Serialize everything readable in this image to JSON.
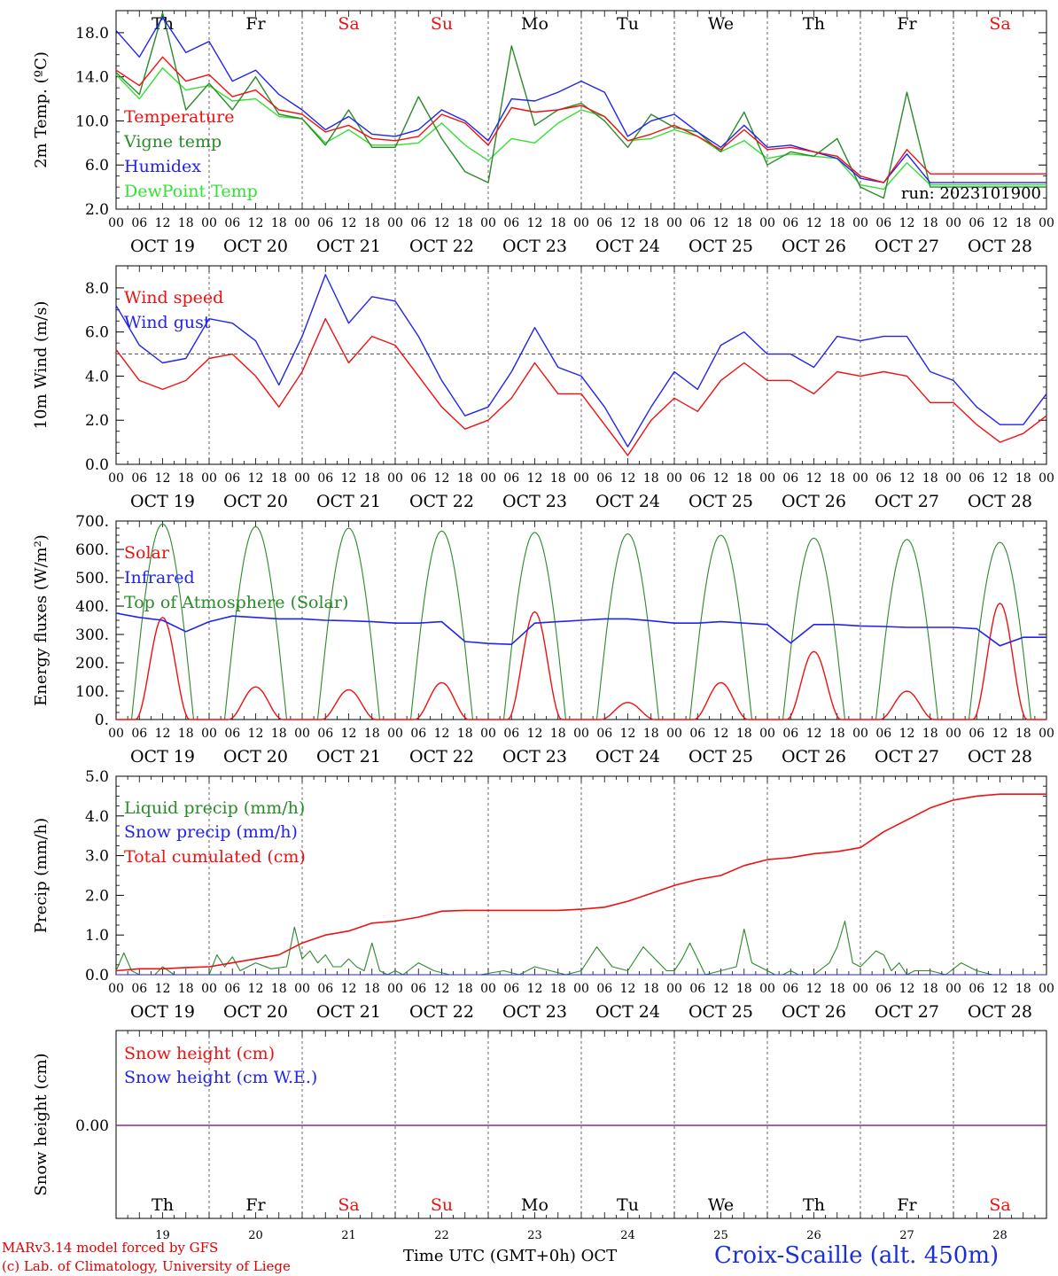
{
  "colors": {
    "red": "#ee1111",
    "green": "#2a8a2a",
    "blue": "#2222ee",
    "lightgreen": "#33e033",
    "purple": "#8a2a8a",
    "black": "#000000"
  },
  "days": [
    "Th",
    "Fr",
    "Sa",
    "Su",
    "Mo",
    "Tu",
    "We",
    "Th",
    "Fr",
    "Sa"
  ],
  "weekend_days": [
    2,
    3,
    9
  ],
  "date_labels": [
    "OCT 19",
    "OCT 20",
    "OCT 21",
    "OCT 22",
    "OCT 23",
    "OCT 24",
    "OCT 25",
    "OCT 26",
    "OCT 27",
    "OCT 28"
  ],
  "hour_ticks": [
    "00",
    "06",
    "12",
    "18"
  ],
  "hour_end": "00",
  "bottom_day_numbers": [
    "19",
    "20",
    "21",
    "22",
    "23",
    "24",
    "25",
    "26",
    "27",
    "28"
  ],
  "footer": {
    "credit_line1": "MARv3.14 model forced by GFS",
    "credit_line2": "(c) Lab. of Climatology, University of Liege",
    "xaxis_title": "Time UTC (GMT+0h) OCT",
    "station": "Croix-Scaille (alt. 450m)"
  },
  "chart_data": [
    {
      "type": "line",
      "ylabel": "2m Temp. (ºC)",
      "ylim": [
        2,
        20
      ],
      "yticks": [
        2,
        6,
        10,
        14,
        18
      ],
      "ytick_labels": [
        "2.0",
        "6.0",
        "10.0",
        "14.0",
        "18.0"
      ],
      "annotation": "run: 2023101900",
      "x_unit": "hours since Oct 19 00 UTC",
      "series": [
        {
          "name": "Temperature",
          "color": "red",
          "x": [
            0,
            6,
            12,
            18,
            24,
            30,
            36,
            42,
            48,
            54,
            60,
            66,
            72,
            78,
            84,
            90,
            96,
            102,
            108,
            114,
            120,
            126,
            132,
            138,
            144,
            150,
            156,
            162,
            168,
            174,
            180,
            186,
            192,
            198,
            204,
            210,
            216,
            222,
            228,
            234,
            240
          ],
          "y": [
            14.6,
            13.2,
            15.8,
            13.6,
            14.2,
            12.2,
            12.8,
            11.0,
            10.6,
            9.0,
            9.6,
            8.4,
            8.2,
            8.6,
            10.6,
            9.8,
            7.8,
            11.2,
            10.8,
            11.0,
            11.4,
            10.4,
            8.2,
            8.8,
            9.6,
            8.6,
            7.4,
            9.2,
            7.4,
            7.6,
            7.2,
            6.8,
            5.0,
            4.4,
            7.4,
            5.2,
            5.2,
            5.2,
            5.2,
            5.2,
            5.2
          ]
        },
        {
          "name": "Vigne temp",
          "color": "green",
          "x": [
            0,
            6,
            12,
            18,
            24,
            30,
            36,
            42,
            48,
            54,
            60,
            66,
            72,
            78,
            84,
            90,
            96,
            102,
            108,
            114,
            120,
            126,
            132,
            138,
            144,
            150,
            156,
            162,
            168,
            174,
            180,
            186,
            192,
            198,
            204,
            210,
            216,
            222,
            228,
            234,
            240
          ],
          "y": [
            14.4,
            12.4,
            19.8,
            11.0,
            13.4,
            11.0,
            14.0,
            10.6,
            10.2,
            7.8,
            11.0,
            7.6,
            7.6,
            12.2,
            8.4,
            5.4,
            4.4,
            16.8,
            9.6,
            11.0,
            11.6,
            10.0,
            7.6,
            10.6,
            9.4,
            9.0,
            7.2,
            10.8,
            6.0,
            7.2,
            6.8,
            8.4,
            4.0,
            3.0,
            12.6,
            4.0,
            4.0,
            4.0,
            4.0,
            4.0,
            4.0
          ]
        },
        {
          "name": "Humidex",
          "color": "blue",
          "x": [
            0,
            6,
            12,
            18,
            24,
            30,
            36,
            42,
            48,
            54,
            60,
            66,
            72,
            78,
            84,
            90,
            96,
            102,
            108,
            114,
            120,
            126,
            132,
            138,
            144,
            150,
            156,
            162,
            168,
            174,
            180,
            186,
            192,
            198,
            204,
            210,
            216,
            222,
            228,
            234,
            240
          ],
          "y": [
            18.2,
            15.8,
            19.4,
            16.2,
            17.2,
            13.6,
            14.6,
            12.4,
            11.0,
            9.2,
            10.4,
            8.8,
            8.6,
            9.2,
            11.0,
            10.0,
            8.2,
            12.0,
            11.8,
            12.6,
            13.6,
            12.6,
            8.6,
            10.0,
            10.6,
            9.0,
            7.6,
            9.6,
            7.6,
            7.8,
            7.2,
            6.6,
            4.8,
            4.4,
            7.0,
            4.4,
            4.4,
            4.4,
            4.4,
            4.4,
            4.4
          ]
        },
        {
          "name": "DewPoint Temp",
          "color": "lightgreen",
          "x": [
            0,
            6,
            12,
            18,
            24,
            30,
            36,
            42,
            48,
            54,
            60,
            66,
            72,
            78,
            84,
            90,
            96,
            102,
            108,
            114,
            120,
            126,
            132,
            138,
            144,
            150,
            156,
            162,
            168,
            174,
            180,
            186,
            192,
            198,
            204,
            210,
            216,
            222,
            228,
            234,
            240
          ],
          "y": [
            14.2,
            12.0,
            14.8,
            12.8,
            13.2,
            11.8,
            12.0,
            10.4,
            10.2,
            8.0,
            9.2,
            7.8,
            7.8,
            8.0,
            9.8,
            7.8,
            6.4,
            8.4,
            8.0,
            9.8,
            11.0,
            10.4,
            8.2,
            8.4,
            9.2,
            8.6,
            7.2,
            8.2,
            6.6,
            7.0,
            6.8,
            6.6,
            4.2,
            3.8,
            6.2,
            4.2,
            4.2,
            4.2,
            4.2,
            4.2,
            4.2
          ]
        }
      ]
    },
    {
      "type": "line",
      "ylabel": "10m Wind (m/s)",
      "ylim": [
        0,
        9
      ],
      "yticks": [
        0,
        2,
        4,
        6,
        8
      ],
      "ytick_labels": [
        "0.0",
        "2.0",
        "4.0",
        "6.0",
        "8.0"
      ],
      "reference_line": 5,
      "series": [
        {
          "name": "Wind speed",
          "color": "red",
          "x": [
            0,
            6,
            12,
            18,
            24,
            30,
            36,
            42,
            48,
            54,
            60,
            66,
            72,
            78,
            84,
            90,
            96,
            102,
            108,
            114,
            120,
            126,
            132,
            138,
            144,
            150,
            156,
            162,
            168,
            174,
            180,
            186,
            192,
            198,
            204,
            210,
            216,
            222,
            228,
            234,
            240
          ],
          "y": [
            5.2,
            3.8,
            3.4,
            3.8,
            4.8,
            5.0,
            4.0,
            2.6,
            4.2,
            6.6,
            4.6,
            5.8,
            5.4,
            4.0,
            2.6,
            1.6,
            2.0,
            3.0,
            4.6,
            3.2,
            3.2,
            1.8,
            0.4,
            2.0,
            3.0,
            2.4,
            3.8,
            4.6,
            3.8,
            3.8,
            3.2,
            4.2,
            4.0,
            4.2,
            4.0,
            2.8,
            2.8,
            1.8,
            1.0,
            1.4,
            2.2
          ]
        },
        {
          "name": "Wind gust",
          "color": "blue",
          "x": [
            0,
            6,
            12,
            18,
            24,
            30,
            36,
            42,
            48,
            54,
            60,
            66,
            72,
            78,
            84,
            90,
            96,
            102,
            108,
            114,
            120,
            126,
            132,
            138,
            144,
            150,
            156,
            162,
            168,
            174,
            180,
            186,
            192,
            198,
            204,
            210,
            216,
            222,
            228,
            234,
            240
          ],
          "y": [
            7.2,
            5.4,
            4.6,
            4.8,
            6.6,
            6.4,
            5.6,
            3.6,
            5.8,
            8.6,
            6.4,
            7.6,
            7.4,
            5.8,
            3.8,
            2.2,
            2.6,
            4.2,
            6.2,
            4.4,
            4.0,
            2.6,
            0.8,
            2.6,
            4.2,
            3.4,
            5.4,
            6.0,
            5.0,
            5.0,
            4.4,
            5.8,
            5.6,
            5.8,
            5.8,
            4.2,
            3.8,
            2.6,
            1.8,
            1.8,
            3.2
          ]
        }
      ]
    },
    {
      "type": "line",
      "ylabel": "Energy fluxes (W/m²)",
      "ylim": [
        0,
        700
      ],
      "yticks": [
        0,
        100,
        200,
        300,
        400,
        500,
        600,
        700
      ],
      "ytick_labels": [
        "0.",
        "100.",
        "200.",
        "300.",
        "400.",
        "500.",
        "600.",
        "700."
      ],
      "series": [
        {
          "name": "Solar",
          "color": "red",
          "peak_hour": [
            12,
            36,
            60,
            84,
            108,
            132,
            156,
            180,
            204,
            228
          ],
          "peak_value": [
            360,
            115,
            105,
            130,
            380,
            60,
            130,
            240,
            100,
            410
          ]
        },
        {
          "name": "Infrared",
          "color": "blue",
          "x": [
            0,
            6,
            12,
            18,
            24,
            30,
            36,
            42,
            48,
            54,
            60,
            66,
            72,
            78,
            84,
            90,
            96,
            102,
            108,
            114,
            120,
            126,
            132,
            138,
            144,
            150,
            156,
            162,
            168,
            174,
            180,
            186,
            192,
            198,
            204,
            210,
            216,
            222,
            228,
            234,
            240
          ],
          "y": [
            375,
            360,
            350,
            310,
            345,
            365,
            360,
            355,
            355,
            350,
            348,
            345,
            340,
            340,
            345,
            275,
            268,
            265,
            340,
            345,
            350,
            355,
            355,
            348,
            340,
            340,
            345,
            340,
            335,
            270,
            335,
            335,
            330,
            328,
            325,
            325,
            325,
            320,
            260,
            290,
            290
          ]
        },
        {
          "name": "Top of Atmosphere (Solar)",
          "color": "green",
          "peak_hour": [
            12,
            36,
            60,
            84,
            108,
            132,
            156,
            180,
            204,
            228
          ],
          "peak_value": [
            690,
            680,
            675,
            665,
            660,
            655,
            650,
            640,
            635,
            625
          ]
        }
      ]
    },
    {
      "type": "line",
      "ylabel": "Precip (mm/h)",
      "ylim": [
        0,
        5
      ],
      "yticks": [
        0,
        1,
        2,
        3,
        4,
        5
      ],
      "ytick_labels": [
        "0.0",
        "1.0",
        "2.0",
        "3.0",
        "4.0",
        "5.0"
      ],
      "series": [
        {
          "name": "Liquid precip (mm/h)",
          "color": "green",
          "x": [
            0,
            2,
            4,
            6,
            10,
            12,
            15,
            18,
            21,
            24,
            26,
            28,
            30,
            32,
            36,
            40,
            44,
            46,
            48,
            50,
            52,
            54,
            56,
            58,
            60,
            62,
            64,
            66,
            68,
            70,
            72,
            74,
            78,
            82,
            86,
            90,
            94,
            100,
            104,
            108,
            112,
            116,
            120,
            124,
            128,
            132,
            136,
            140,
            142,
            144,
            146,
            148,
            150,
            152,
            156,
            160,
            162,
            164,
            166,
            168,
            170,
            172,
            174,
            176,
            180,
            184,
            186,
            188,
            190,
            192,
            194,
            196,
            198,
            200,
            202,
            204,
            206,
            208,
            210,
            214,
            218,
            222,
            226,
            230,
            234,
            240
          ],
          "y": [
            0.1,
            0.55,
            0.1,
            0.0,
            0.0,
            0.2,
            0.0,
            0.0,
            0.0,
            0.0,
            0.5,
            0.2,
            0.45,
            0.1,
            0.3,
            0.15,
            0.2,
            1.2,
            0.4,
            0.6,
            0.3,
            0.5,
            0.2,
            0.2,
            0.4,
            0.2,
            0.1,
            0.8,
            0.1,
            0.0,
            0.1,
            0.0,
            0.3,
            0.1,
            0.0,
            0.0,
            0.0,
            0.1,
            0.0,
            0.2,
            0.1,
            0.0,
            0.1,
            0.7,
            0.2,
            0.1,
            0.7,
            0.3,
            0.1,
            0.1,
            0.4,
            0.8,
            0.4,
            0.0,
            0.1,
            0.2,
            1.15,
            0.3,
            0.2,
            0.1,
            0.0,
            0.0,
            0.1,
            0.0,
            0.0,
            0.3,
            0.7,
            1.35,
            0.3,
            0.2,
            0.4,
            0.6,
            0.5,
            0.1,
            0.3,
            0.0,
            0.1,
            0.1,
            0.1,
            0.0,
            0.3,
            0.1,
            0.0,
            0.0,
            0.0,
            0.0
          ]
        },
        {
          "name": "Snow precip (mm/h)",
          "color": "blue",
          "x": [
            0,
            240
          ],
          "y": [
            0,
            0
          ]
        },
        {
          "name": "Total cumulated (cm)",
          "color": "red",
          "x": [
            0,
            6,
            12,
            18,
            24,
            30,
            36,
            42,
            48,
            54,
            60,
            66,
            72,
            78,
            84,
            90,
            96,
            102,
            108,
            114,
            120,
            126,
            132,
            138,
            144,
            150,
            156,
            162,
            168,
            174,
            180,
            186,
            192,
            198,
            204,
            210,
            216,
            222,
            228,
            234,
            240
          ],
          "y": [
            0.1,
            0.15,
            0.15,
            0.18,
            0.2,
            0.3,
            0.4,
            0.5,
            0.8,
            1.0,
            1.1,
            1.3,
            1.35,
            1.45,
            1.6,
            1.62,
            1.62,
            1.62,
            1.62,
            1.62,
            1.65,
            1.7,
            1.85,
            2.05,
            2.25,
            2.4,
            2.5,
            2.75,
            2.9,
            2.95,
            3.05,
            3.1,
            3.2,
            3.6,
            3.9,
            4.2,
            4.4,
            4.5,
            4.55,
            4.55,
            4.55
          ]
        }
      ]
    },
    {
      "type": "line",
      "ylabel": "Snow height (cm)",
      "ytick_labels": [
        "0.00"
      ],
      "series": [
        {
          "name": "Snow height (cm)",
          "color": "red",
          "x": [
            0,
            240
          ],
          "y": [
            0,
            0
          ]
        },
        {
          "name": "Snow height (cm W.E.)",
          "color": "blue",
          "x": [
            0,
            240
          ],
          "y": [
            0,
            0
          ]
        }
      ]
    }
  ]
}
